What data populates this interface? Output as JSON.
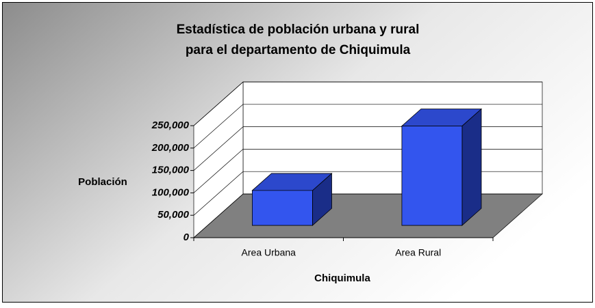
{
  "chart_data": {
    "type": "bar3d",
    "title": [
      "Estadística de población urbana y rural",
      "para el departamento de Chiquimula"
    ],
    "x_label": "Chiquimula",
    "y_label": "Población",
    "categories": [
      "Area Urbana",
      "Area Rural"
    ],
    "values": [
      78000,
      222000
    ],
    "color": "#3355ee",
    "ylim": [
      0,
      250000
    ],
    "yticks": [
      0,
      {
        "value": 50000,
        "label": "50,000"
      },
      {
        "value": 100000,
        "label": "100,000"
      },
      {
        "value": 150000,
        "label": "150,000"
      },
      {
        "value": 200000,
        "label": "200,000"
      },
      {
        "value": 250000,
        "label": "250,000"
      }
    ],
    "grid": true
  }
}
